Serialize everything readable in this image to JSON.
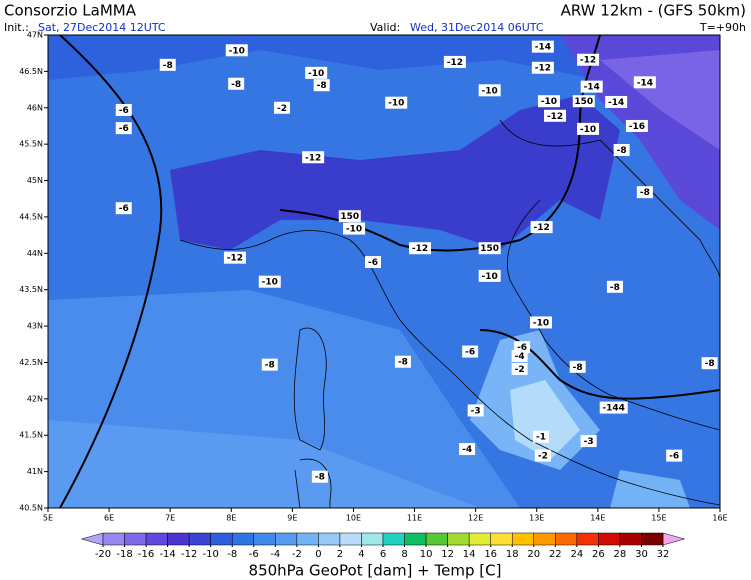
{
  "header": {
    "title": "Consorzio LaMMA",
    "init_label": "Init.:",
    "init_value": "Sat, 27Dec2014 12UTC",
    "valid_label": "Valid:",
    "valid_value": "Wed, 31Dec2014 06UTC",
    "model": "ARW 12km - (GFS 50km)",
    "forecast": "T=+90h"
  },
  "map": {
    "lon_ticks": [
      "5E",
      "6E",
      "7E",
      "8E",
      "9E",
      "10E",
      "11E",
      "12E",
      "13E",
      "14E",
      "15E",
      "16E"
    ],
    "lat_ticks": [
      "47N",
      "46.5N",
      "46N",
      "45.5N",
      "45N",
      "44.5N",
      "44N",
      "43.5N",
      "43N",
      "42.5N",
      "42N",
      "41.5N",
      "41N",
      "40.5N"
    ],
    "contour_labels": [
      {
        "text": "-10",
        "lon": 8.09,
        "lat": 46.79
      },
      {
        "text": "-8",
        "lon": 6.96,
        "lat": 46.59
      },
      {
        "text": "-8",
        "lon": 8.08,
        "lat": 46.33
      },
      {
        "text": "-10",
        "lon": 9.39,
        "lat": 46.48
      },
      {
        "text": "-8",
        "lon": 9.48,
        "lat": 46.31
      },
      {
        "text": "-12",
        "lon": 11.66,
        "lat": 46.63
      },
      {
        "text": "-14",
        "lon": 13.1,
        "lat": 46.84
      },
      {
        "text": "-12",
        "lon": 13.84,
        "lat": 46.66
      },
      {
        "text": "-12",
        "lon": 13.1,
        "lat": 46.55
      },
      {
        "text": "-14",
        "lon": 14.77,
        "lat": 46.35
      },
      {
        "text": "-14",
        "lon": 13.9,
        "lat": 46.29
      },
      {
        "text": "-14",
        "lon": 14.3,
        "lat": 46.08
      },
      {
        "text": "-10",
        "lon": 12.23,
        "lat": 46.24
      },
      {
        "text": "-10",
        "lon": 13.2,
        "lat": 46.09
      },
      {
        "text": "150",
        "lon": 13.77,
        "lat": 46.09
      },
      {
        "text": "-12",
        "lon": 13.3,
        "lat": 45.89
      },
      {
        "text": "-10",
        "lon": 13.84,
        "lat": 45.71
      },
      {
        "text": "-16",
        "lon": 14.64,
        "lat": 45.75
      },
      {
        "text": "-6",
        "lon": 6.24,
        "lat": 45.97
      },
      {
        "text": "-6",
        "lon": 6.24,
        "lat": 45.72
      },
      {
        "text": "-2",
        "lon": 8.83,
        "lat": 46.0
      },
      {
        "text": "-10",
        "lon": 10.7,
        "lat": 46.07
      },
      {
        "text": "-12",
        "lon": 9.34,
        "lat": 45.32
      },
      {
        "text": "-8",
        "lon": 14.39,
        "lat": 45.42
      },
      {
        "text": "-8",
        "lon": 14.77,
        "lat": 44.84
      },
      {
        "text": "-6",
        "lon": 6.24,
        "lat": 44.62
      },
      {
        "text": "150",
        "lon": 9.94,
        "lat": 44.51
      },
      {
        "text": "-10",
        "lon": 10.01,
        "lat": 44.34
      },
      {
        "text": "-12",
        "lon": 13.08,
        "lat": 44.36
      },
      {
        "text": "-12",
        "lon": 8.06,
        "lat": 43.94
      },
      {
        "text": "-6",
        "lon": 10.32,
        "lat": 43.88
      },
      {
        "text": "-12",
        "lon": 11.09,
        "lat": 44.07
      },
      {
        "text": "150",
        "lon": 12.23,
        "lat": 44.07
      },
      {
        "text": "-10",
        "lon": 8.63,
        "lat": 43.61
      },
      {
        "text": "-10",
        "lon": 12.23,
        "lat": 43.69
      },
      {
        "text": "-8",
        "lon": 14.28,
        "lat": 43.54
      },
      {
        "text": "-10",
        "lon": 13.07,
        "lat": 43.05
      },
      {
        "text": "-6",
        "lon": 12.76,
        "lat": 42.71
      },
      {
        "text": "-6",
        "lon": 11.91,
        "lat": 42.65
      },
      {
        "text": "-4",
        "lon": 12.72,
        "lat": 42.59
      },
      {
        "text": "-8",
        "lon": 10.81,
        "lat": 42.51
      },
      {
        "text": "-8",
        "lon": 8.63,
        "lat": 42.47
      },
      {
        "text": "-2",
        "lon": 12.72,
        "lat": 42.41
      },
      {
        "text": "-8",
        "lon": 13.67,
        "lat": 42.44
      },
      {
        "text": "-8",
        "lon": 15.83,
        "lat": 42.49
      },
      {
        "text": "-3",
        "lon": 12.0,
        "lat": 41.84
      },
      {
        "text": "-144",
        "lon": 14.26,
        "lat": 41.88
      },
      {
        "text": "-1",
        "lon": 13.07,
        "lat": 41.48
      },
      {
        "text": "-3",
        "lon": 13.85,
        "lat": 41.42
      },
      {
        "text": "-4",
        "lon": 11.86,
        "lat": 41.31
      },
      {
        "text": "-2",
        "lon": 13.1,
        "lat": 41.22
      },
      {
        "text": "-6",
        "lon": 15.25,
        "lat": 41.22
      },
      {
        "text": "-8",
        "lon": 9.45,
        "lat": 40.93
      }
    ]
  },
  "colorbar": {
    "ticks": [
      -20,
      -18,
      -16,
      -14,
      -12,
      -10,
      -8,
      -6,
      -4,
      -2,
      0,
      2,
      4,
      6,
      8,
      10,
      12,
      14,
      16,
      18,
      20,
      22,
      24,
      26,
      28,
      30,
      32
    ],
    "colors": [
      "#9a86f2",
      "#7f68ea",
      "#6248e0",
      "#4a34d2",
      "#3a44d6",
      "#2c5ede",
      "#2f74e6",
      "#3f88ec",
      "#579cf2",
      "#74b2f6",
      "#96c8f8",
      "#b8dcfa",
      "#9ee8e8",
      "#22d2c0",
      "#10be64",
      "#56c836",
      "#a4da34",
      "#e2ee34",
      "#fce034",
      "#ffc000",
      "#ff9800",
      "#ff6a00",
      "#f23000",
      "#d20a00",
      "#a80000",
      "#7a0000"
    ],
    "low_color": "#b4a4f6",
    "high_color": "#f0a8f0",
    "caption": "850hPa GeoPot [dam] + Temp [C]"
  }
}
